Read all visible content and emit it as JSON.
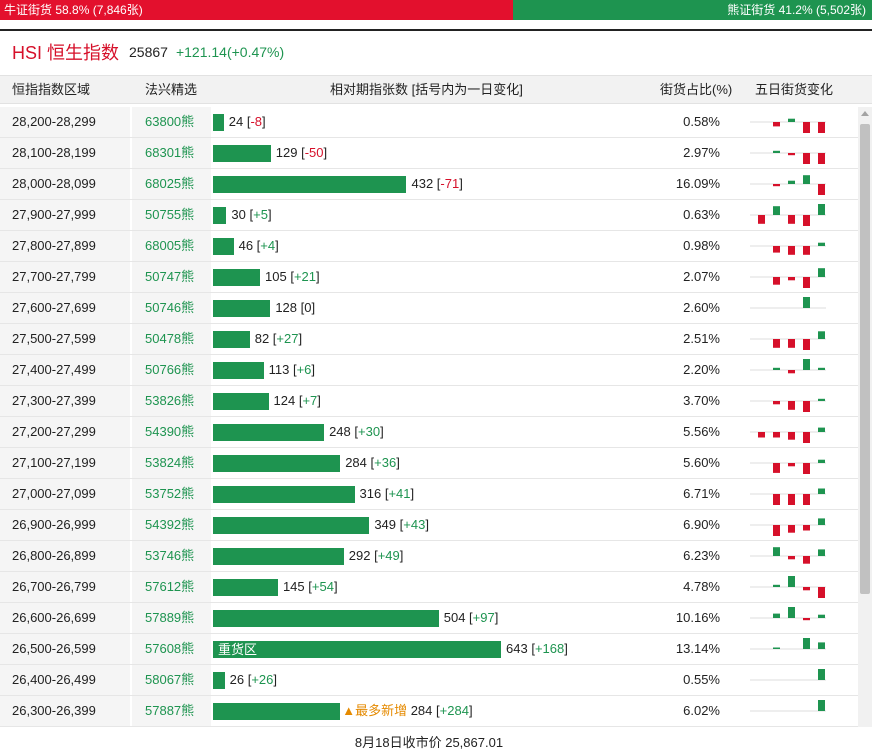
{
  "ratio_bar": {
    "bull_text": "牛证街货 58.8% (7,846张)",
    "bear_text": "熊证街货 41.2% (5,502张)",
    "bull_pct": 58.8,
    "bull_color": "#e3102d",
    "bear_color": "#1e9450"
  },
  "index": {
    "name": "HSI 恒生指数",
    "value": "25867",
    "change": "+121.14(+0.47%)"
  },
  "columns": {
    "zone": "恒指指数区域",
    "pick": "法兴精选",
    "relative": "相对期指张数 [括号内为一日变化]",
    "share": "街货占比(%)",
    "five_day": "五日街货变化"
  },
  "max_contracts": 643,
  "rows": [
    {
      "zone": "28,200-28,299",
      "code": "63800熊",
      "contracts": 24,
      "delta": "-8",
      "share": "0.58%",
      "five_day": [
        0,
        -0.4,
        0.3,
        -1,
        -1
      ]
    },
    {
      "zone": "28,100-28,199",
      "code": "68301熊",
      "contracts": 129,
      "delta": "-50",
      "share": "2.97%",
      "five_day": [
        0,
        0.2,
        -0.2,
        -1,
        -1
      ]
    },
    {
      "zone": "28,000-28,099",
      "code": "68025熊",
      "contracts": 432,
      "delta": "-71",
      "share": "16.09%",
      "five_day": [
        0,
        -0.2,
        0.3,
        0.8,
        -1
      ]
    },
    {
      "zone": "27,900-27,999",
      "code": "50755熊",
      "contracts": 30,
      "delta": "+5",
      "share": "0.63%",
      "five_day": [
        -0.8,
        0.8,
        -0.8,
        -1,
        1
      ]
    },
    {
      "zone": "27,800-27,899",
      "code": "68005熊",
      "contracts": 46,
      "delta": "+4",
      "share": "0.98%",
      "five_day": [
        0,
        -0.6,
        -0.8,
        -0.8,
        0.3
      ]
    },
    {
      "zone": "27,700-27,799",
      "code": "50747熊",
      "contracts": 105,
      "delta": "+21",
      "share": "2.07%",
      "five_day": [
        0,
        -0.7,
        -0.3,
        -1,
        0.8
      ]
    },
    {
      "zone": "27,600-27,699",
      "code": "50746熊",
      "contracts": 128,
      "delta": "0",
      "share": "2.60%",
      "five_day": [
        0,
        0,
        0,
        1,
        0
      ]
    },
    {
      "zone": "27,500-27,599",
      "code": "50478熊",
      "contracts": 82,
      "delta": "+27",
      "share": "2.51%",
      "five_day": [
        0,
        -0.8,
        -0.8,
        -1,
        0.7
      ]
    },
    {
      "zone": "27,400-27,499",
      "code": "50766熊",
      "contracts": 113,
      "delta": "+6",
      "share": "2.20%",
      "five_day": [
        0,
        0.2,
        -0.3,
        1,
        0.2
      ]
    },
    {
      "zone": "27,300-27,399",
      "code": "53826熊",
      "contracts": 124,
      "delta": "+7",
      "share": "3.70%",
      "five_day": [
        0,
        -0.3,
        -0.8,
        -1,
        0.2
      ]
    },
    {
      "zone": "27,200-27,299",
      "code": "54390熊",
      "contracts": 248,
      "delta": "+30",
      "share": "5.56%",
      "five_day": [
        -0.5,
        -0.5,
        -0.7,
        -1,
        0.4
      ]
    },
    {
      "zone": "27,100-27,199",
      "code": "53824熊",
      "contracts": 284,
      "delta": "+36",
      "share": "5.60%",
      "five_day": [
        0,
        -0.9,
        -0.3,
        -1,
        0.3
      ]
    },
    {
      "zone": "27,000-27,099",
      "code": "53752熊",
      "contracts": 316,
      "delta": "+41",
      "share": "6.71%",
      "five_day": [
        0,
        -1,
        -1,
        -1,
        0.5
      ]
    },
    {
      "zone": "26,900-26,999",
      "code": "54392熊",
      "contracts": 349,
      "delta": "+43",
      "share": "6.90%",
      "five_day": [
        0,
        -1,
        -0.7,
        -0.5,
        0.6
      ]
    },
    {
      "zone": "26,800-26,899",
      "code": "53746熊",
      "contracts": 292,
      "delta": "+49",
      "share": "6.23%",
      "five_day": [
        0,
        0.8,
        -0.3,
        -0.7,
        0.6
      ]
    },
    {
      "zone": "26,700-26,799",
      "code": "57612熊",
      "contracts": 145,
      "delta": "+54",
      "share": "4.78%",
      "five_day": [
        0,
        0.2,
        1,
        -0.3,
        -1
      ]
    },
    {
      "zone": "26,600-26,699",
      "code": "57889熊",
      "contracts": 504,
      "delta": "+97",
      "share": "10.16%",
      "five_day": [
        0,
        0.4,
        1,
        -0.2,
        0.3
      ]
    },
    {
      "zone": "26,500-26,599",
      "code": "57608熊",
      "contracts": 643,
      "delta": "+168",
      "share": "13.14%",
      "five_day": [
        0,
        0.1,
        0,
        1,
        0.6
      ],
      "label": "重货区"
    },
    {
      "zone": "26,400-26,499",
      "code": "58067熊",
      "contracts": 26,
      "delta": "+26",
      "share": "0.55%",
      "five_day": [
        0,
        0,
        0,
        0,
        1
      ]
    },
    {
      "zone": "26,300-26,399",
      "code": "57887熊",
      "contracts": 284,
      "delta": "+284",
      "share": "6.02%",
      "five_day": [
        0,
        0,
        0,
        0,
        1
      ],
      "tag": "▲最多新增"
    }
  ],
  "footer": "8月18日收市价 25,867.01",
  "colors": {
    "up": "#1e9450",
    "down": "#d6102a",
    "tag": "#e58a00"
  }
}
